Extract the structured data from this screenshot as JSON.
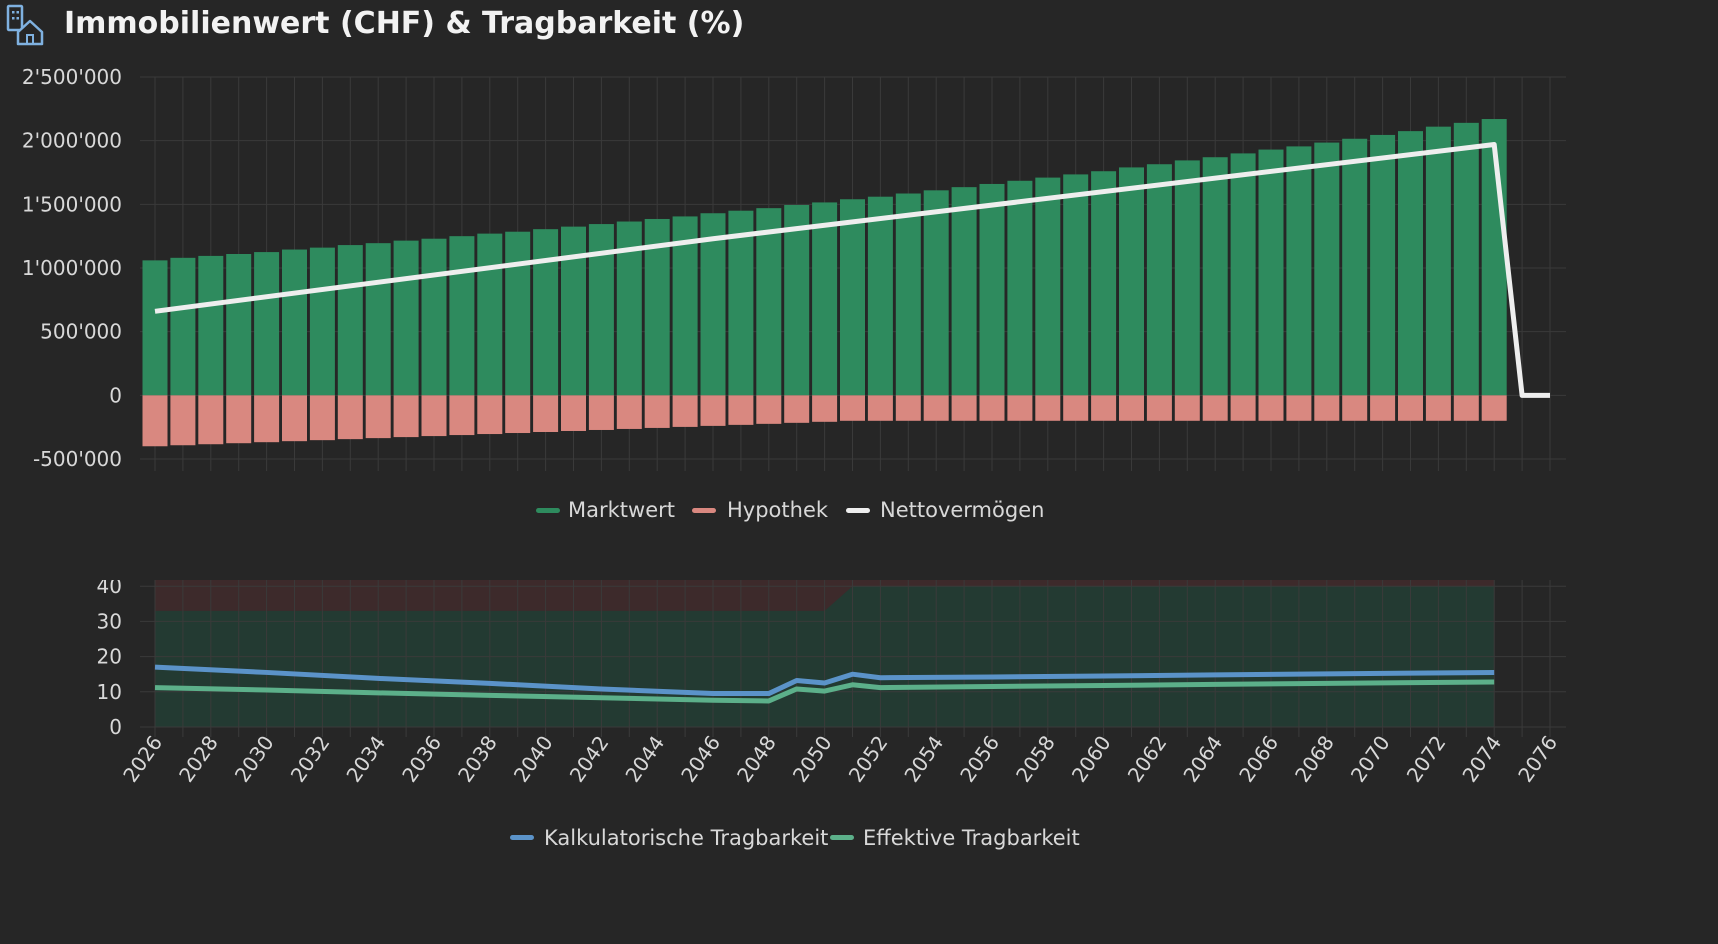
{
  "header": {
    "title": "Immobilienwert (CHF) & Tragbarkeit (%)",
    "icon": "building-house-icon"
  },
  "colors": {
    "marktwert": "#2e8b5e",
    "hypothek": "#d98880",
    "nettovermoegen": "#eeeeee",
    "kalkulatorisch": "#5b93c9",
    "effektiv": "#5cb08a",
    "zone_ok": "#233a32",
    "zone_risk": "#3d2a2b",
    "grid": "#3a3a3a"
  },
  "chart_data": [
    {
      "type": "bar",
      "title": "Immobilienwert (CHF)",
      "x_start": 2026,
      "x_end": 2076,
      "xticks": [
        "2026",
        "2028",
        "2030",
        "2032",
        "2034",
        "2036",
        "2038",
        "2040",
        "2042",
        "2044",
        "2046",
        "2048",
        "2050",
        "2052",
        "2054",
        "2056",
        "2058",
        "2060",
        "2062",
        "2064",
        "2066",
        "2068",
        "2070",
        "2072",
        "2074",
        "2076"
      ],
      "ylim": [
        -500000,
        2500000
      ],
      "yticks": [
        2500000,
        2000000,
        1500000,
        1000000,
        500000,
        0,
        -500000
      ],
      "ytick_labels": [
        "2'500'000",
        "2'000'000",
        "1'500'000",
        "1'000'000",
        "500'000",
        "0",
        "-500'000"
      ],
      "grid": true,
      "legend": "bottom-center",
      "series": [
        {
          "name": "Marktwert",
          "kind": "bar",
          "start_year": 2026,
          "values": [
            1060000,
            1080000,
            1095000,
            1110000,
            1125000,
            1145000,
            1160000,
            1180000,
            1195000,
            1215000,
            1230000,
            1250000,
            1270000,
            1285000,
            1305000,
            1325000,
            1345000,
            1365000,
            1385000,
            1405000,
            1430000,
            1450000,
            1470000,
            1495000,
            1515000,
            1540000,
            1560000,
            1585000,
            1610000,
            1635000,
            1660000,
            1685000,
            1710000,
            1735000,
            1760000,
            1790000,
            1815000,
            1845000,
            1870000,
            1900000,
            1930000,
            1955000,
            1985000,
            2015000,
            2045000,
            2075000,
            2110000,
            2140000,
            2170000
          ]
        },
        {
          "name": "Hypothek",
          "kind": "bar",
          "start_year": 2026,
          "values": [
            -400000,
            -392000,
            -384000,
            -376000,
            -368000,
            -360000,
            -352000,
            -344000,
            -336000,
            -328000,
            -320000,
            -312000,
            -304000,
            -296000,
            -288000,
            -280000,
            -272000,
            -264000,
            -256000,
            -248000,
            -240000,
            -232000,
            -224000,
            -216000,
            -208000,
            -200000,
            -200000,
            -200000,
            -200000,
            -200000,
            -200000,
            -200000,
            -200000,
            -200000,
            -200000,
            -200000,
            -200000,
            -200000,
            -200000,
            -200000,
            -200000,
            -200000,
            -200000,
            -200000,
            -200000,
            -200000,
            -200000,
            -200000,
            -200000
          ]
        },
        {
          "name": "Nettovermögen",
          "kind": "line",
          "x": [
            2026,
            2046,
            2074,
            2075,
            2076
          ],
          "values": [
            660000,
            1230000,
            1970000,
            0,
            0
          ]
        }
      ]
    },
    {
      "type": "line",
      "title": "Tragbarkeit (%)",
      "x_start": 2026,
      "x_end": 2076,
      "ylim": [
        0,
        50
      ],
      "yticks": [
        50,
        40,
        30,
        20,
        10,
        0
      ],
      "grid": true,
      "legend": "bottom-center",
      "threshold_band": {
        "x": [
          2026,
          2050,
          2051,
          2074
        ],
        "values": [
          33,
          33,
          40,
          40
        ]
      },
      "series": [
        {
          "name": "Kalkulatorische Tragbarkeit",
          "x": [
            2026,
            2030,
            2034,
            2038,
            2042,
            2046,
            2048,
            2049,
            2050,
            2051,
            2052,
            2056,
            2060,
            2064,
            2068,
            2074
          ],
          "values": [
            17,
            15.5,
            13.8,
            12.4,
            10.8,
            9.5,
            9.5,
            13.2,
            12.5,
            15,
            14,
            14.2,
            14.5,
            14.8,
            15.1,
            15.5
          ]
        },
        {
          "name": "Effektive Tragbarkeit",
          "x": [
            2026,
            2030,
            2034,
            2038,
            2042,
            2046,
            2048,
            2049,
            2050,
            2051,
            2052,
            2056,
            2060,
            2064,
            2068,
            2074
          ],
          "values": [
            11.2,
            10.5,
            9.7,
            9,
            8.3,
            7.6,
            7.4,
            10.8,
            10.2,
            12,
            11.2,
            11.5,
            11.8,
            12.1,
            12.4,
            12.8
          ]
        }
      ]
    }
  ]
}
